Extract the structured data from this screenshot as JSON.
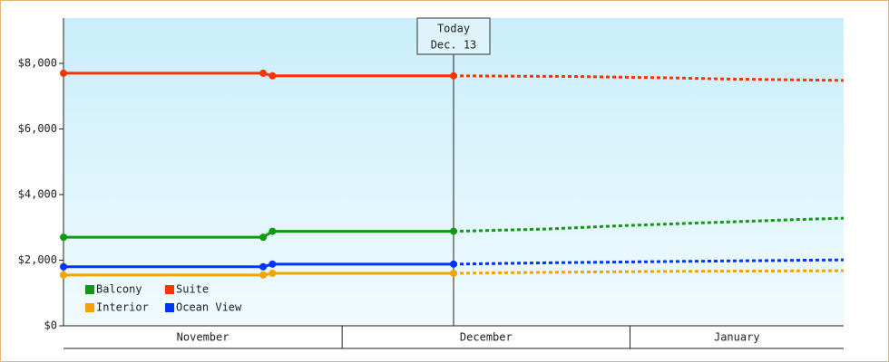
{
  "chart_data": {
    "type": "line",
    "xlim": [
      0,
      84
    ],
    "ylim": [
      0,
      9380
    ],
    "yticks": [
      {
        "value": 0,
        "label": "$0"
      },
      {
        "value": 2000,
        "label": "$2,000"
      },
      {
        "value": 4000,
        "label": "$4,000"
      },
      {
        "value": 6000,
        "label": "$6,000"
      },
      {
        "value": 8000,
        "label": "$8,000"
      }
    ],
    "months": [
      {
        "label": "November",
        "start": 0,
        "end": 30
      },
      {
        "label": "December",
        "start": 30,
        "end": 61
      },
      {
        "label": "January",
        "start": 61,
        "end": 84
      }
    ],
    "annotation": {
      "x": 42,
      "lines": [
        "Today",
        "Dec. 13"
      ]
    },
    "legend": "lower-left",
    "series": [
      {
        "name": "Balcony",
        "color": "#119911",
        "x": [
          0,
          21.5,
          22.5,
          42
        ],
        "values": [
          2700,
          2700,
          2880,
          2880
        ],
        "forecast": {
          "x": [
            42,
            52,
            60,
            70,
            78,
            84
          ],
          "values": [
            2880,
            2950,
            3050,
            3150,
            3230,
            3280
          ]
        }
      },
      {
        "name": "Suite",
        "color": "#ff3300",
        "x": [
          0,
          21.5,
          22.5,
          42
        ],
        "values": [
          7700,
          7700,
          7620,
          7620
        ],
        "forecast": {
          "x": [
            42,
            55,
            65,
            72,
            84
          ],
          "values": [
            7620,
            7600,
            7560,
            7520,
            7480
          ]
        }
      },
      {
        "name": "Interior",
        "color": "#f5a300",
        "x": [
          0,
          21.5,
          22.5,
          42
        ],
        "values": [
          1550,
          1550,
          1600,
          1600
        ],
        "forecast": {
          "x": [
            42,
            52,
            65,
            84
          ],
          "values": [
            1600,
            1630,
            1660,
            1680
          ]
        }
      },
      {
        "name": "Ocean View",
        "color": "#0033ff",
        "x": [
          0,
          21.5,
          22.5,
          42
        ],
        "values": [
          1800,
          1800,
          1880,
          1880
        ],
        "forecast": {
          "x": [
            42,
            52,
            65,
            84
          ],
          "values": [
            1880,
            1920,
            1960,
            2010
          ]
        }
      }
    ]
  }
}
